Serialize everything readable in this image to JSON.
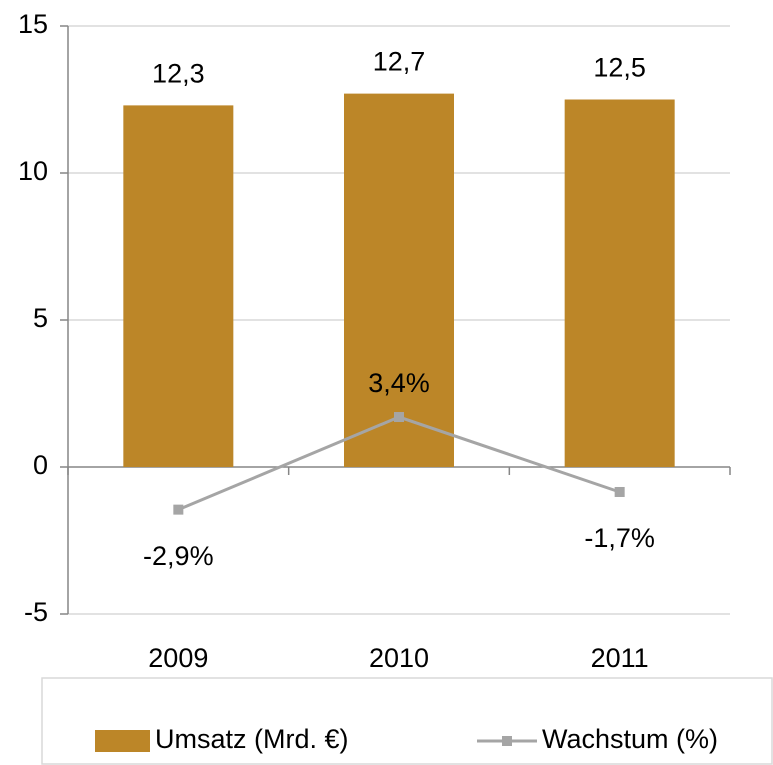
{
  "chart_data": {
    "type": "bar-line",
    "categories": [
      "2009",
      "2010",
      "2011"
    ],
    "series": [
      {
        "name": "Umsatz (Mrd. €)",
        "type": "bar",
        "color": "#bc8628",
        "values": [
          12.3,
          12.7,
          12.5
        ],
        "value_labels": [
          "12,3",
          "12,7",
          "12,5"
        ]
      },
      {
        "name": "Wachstum (%)",
        "type": "line",
        "axis": "y2",
        "color": "#a5a5a5",
        "values": [
          -2.9,
          3.4,
          -1.7
        ],
        "value_labels": [
          "-2,9%",
          "3,4%",
          "-1,7%"
        ]
      }
    ],
    "ylim": [
      -5,
      15
    ],
    "yticks": [
      -5,
      0,
      5,
      10,
      15
    ],
    "y2lim": [
      -10,
      30
    ],
    "grid": true,
    "legend": "bottom"
  }
}
